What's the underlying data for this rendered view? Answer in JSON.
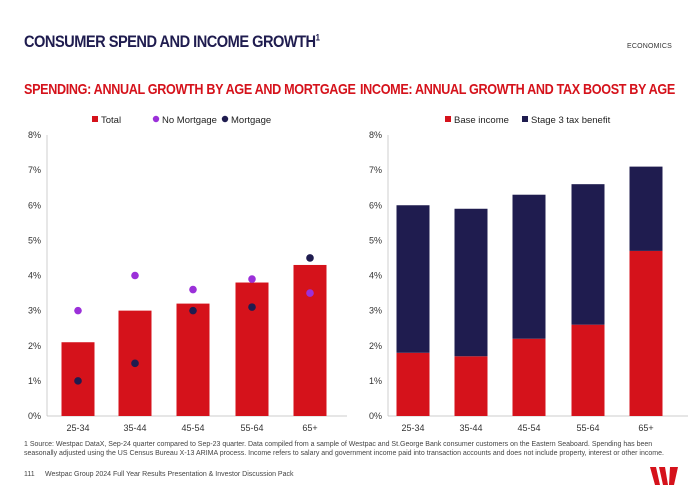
{
  "header": {
    "title": "CONSUMER SPEND AND INCOME GROWTH",
    "title_sup": "1",
    "section": "ECONOMICS"
  },
  "colors": {
    "red": "#d5121b",
    "navy": "#1f1c4f",
    "purple": "#9b30d9"
  },
  "chart_data": [
    {
      "type": "bar",
      "title": "SPENDING: ANNUAL GROWTH BY AGE AND MORTGAGE",
      "categories": [
        "25-34",
        "35-44",
        "45-54",
        "55-64",
        "65+"
      ],
      "yticks": [
        "0%",
        "1%",
        "2%",
        "3%",
        "4%",
        "5%",
        "6%",
        "7%",
        "8%"
      ],
      "ylim": [
        0,
        8
      ],
      "grid": false,
      "legend": "top",
      "series": [
        {
          "name": "Total",
          "kind": "bar",
          "color": "#d5121b",
          "values": [
            2.1,
            3.0,
            3.2,
            3.8,
            4.3
          ]
        },
        {
          "name": "No Mortgage",
          "kind": "dot",
          "color": "#9b30d9",
          "values": [
            3.0,
            4.0,
            3.6,
            3.9,
            3.5
          ]
        },
        {
          "name": "Mortgage",
          "kind": "dot",
          "color": "#1f1c4f",
          "values": [
            1.0,
            1.5,
            3.0,
            3.1,
            4.5
          ]
        }
      ]
    },
    {
      "type": "bar",
      "stacked": true,
      "title": "INCOME: ANNUAL GROWTH AND TAX BOOST BY AGE",
      "categories": [
        "25-34",
        "35-44",
        "45-54",
        "55-64",
        "65+"
      ],
      "yticks": [
        "0%",
        "1%",
        "2%",
        "3%",
        "4%",
        "5%",
        "6%",
        "7%",
        "8%"
      ],
      "ylim": [
        0,
        8
      ],
      "grid": false,
      "legend": "top",
      "series": [
        {
          "name": "Base income",
          "color": "#d5121b",
          "values": [
            1.8,
            1.7,
            2.2,
            2.6,
            4.7
          ]
        },
        {
          "name": "Stage 3 tax benefit",
          "color": "#1f1c4f",
          "values": [
            4.2,
            4.2,
            4.1,
            4.0,
            2.4
          ]
        }
      ]
    }
  ],
  "footer": {
    "note": "1 Source: Westpac DataX, Sep-24 quarter compared to Sep-23 quarter.  Data compiled from a sample of Westpac and St.George Bank consumer customers on the Eastern Seaboard. Spending has been seasonally adjusted using the US Census Bureau X-13 ARIMA process. Income refers to salary and government income paid into transaction accounts and does not include property, interest or other income.",
    "page": "111",
    "doc": "Westpac Group 2024 Full Year Results Presentation & Investor Discussion Pack",
    "logo": "W"
  }
}
